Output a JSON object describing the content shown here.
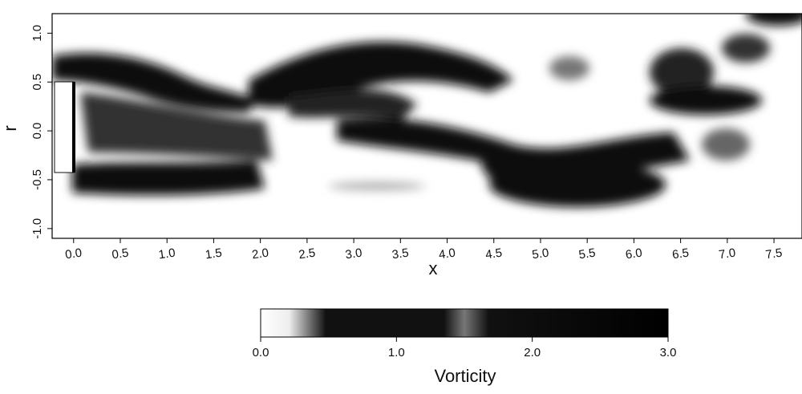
{
  "chart_data": {
    "type": "contour",
    "xlabel": "x",
    "ylabel": "r",
    "xlim": [
      -0.23,
      7.8
    ],
    "xticks": [
      {
        "value": 0,
        "label": "0.0"
      },
      0.5,
      {
        "value": 1,
        "label": "1.0"
      },
      1.5,
      {
        "value": 2,
        "label": "2.0"
      },
      2.5,
      {
        "value": 3,
        "label": "3.0"
      },
      3.5,
      {
        "value": 4,
        "label": "4.0"
      },
      4.5,
      {
        "value": 5,
        "label": "5.0"
      },
      5.5,
      {
        "value": 6,
        "label": "6.0"
      },
      6.5,
      {
        "value": 7,
        "label": "7.0"
      },
      7.5
    ],
    "ylim": [
      -1.1,
      1.2
    ],
    "yticks": [
      {
        "value": 1,
        "label": "1.0"
      },
      0.5,
      {
        "value": 0,
        "label": "0.0"
      },
      -0.5,
      {
        "value": -1,
        "label": "-1.0"
      }
    ],
    "colorbar": {
      "label": "Vorticity",
      "lim": [
        0,
        3
      ],
      "ticks": [
        {
          "value": 0,
          "label": "0.0"
        },
        {
          "value": 1,
          "label": "1.0"
        },
        {
          "value": 2,
          "label": "2.0"
        },
        {
          "value": 3,
          "label": "3.0"
        }
      ]
    }
  }
}
